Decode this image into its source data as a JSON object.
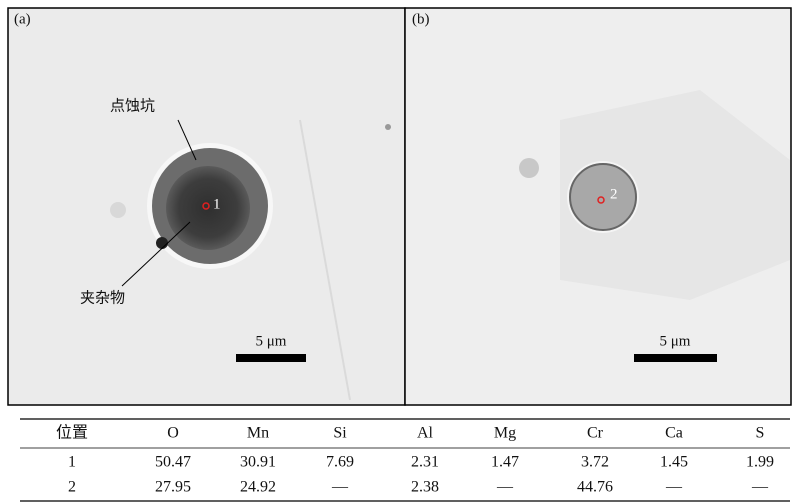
{
  "panels": [
    {
      "label": "(a)",
      "point": "1",
      "annotations": [
        "点蚀坑",
        "夹杂物"
      ],
      "scale": "5 μm"
    },
    {
      "label": "(b)",
      "point": "2",
      "scale": "5 μm"
    }
  ],
  "table": {
    "headers": [
      "位置",
      "O",
      "Mn",
      "Si",
      "Al",
      "Mg",
      "Cr",
      "Ca",
      "S"
    ],
    "rows": [
      [
        "1",
        50.47,
        30.91,
        7.69,
        2.31,
        1.47,
        3.72,
        1.45,
        1.99
      ],
      [
        "2",
        27.95,
        24.92,
        "—",
        2.38,
        "—",
        44.76,
        "—",
        "—"
      ]
    ]
  }
}
